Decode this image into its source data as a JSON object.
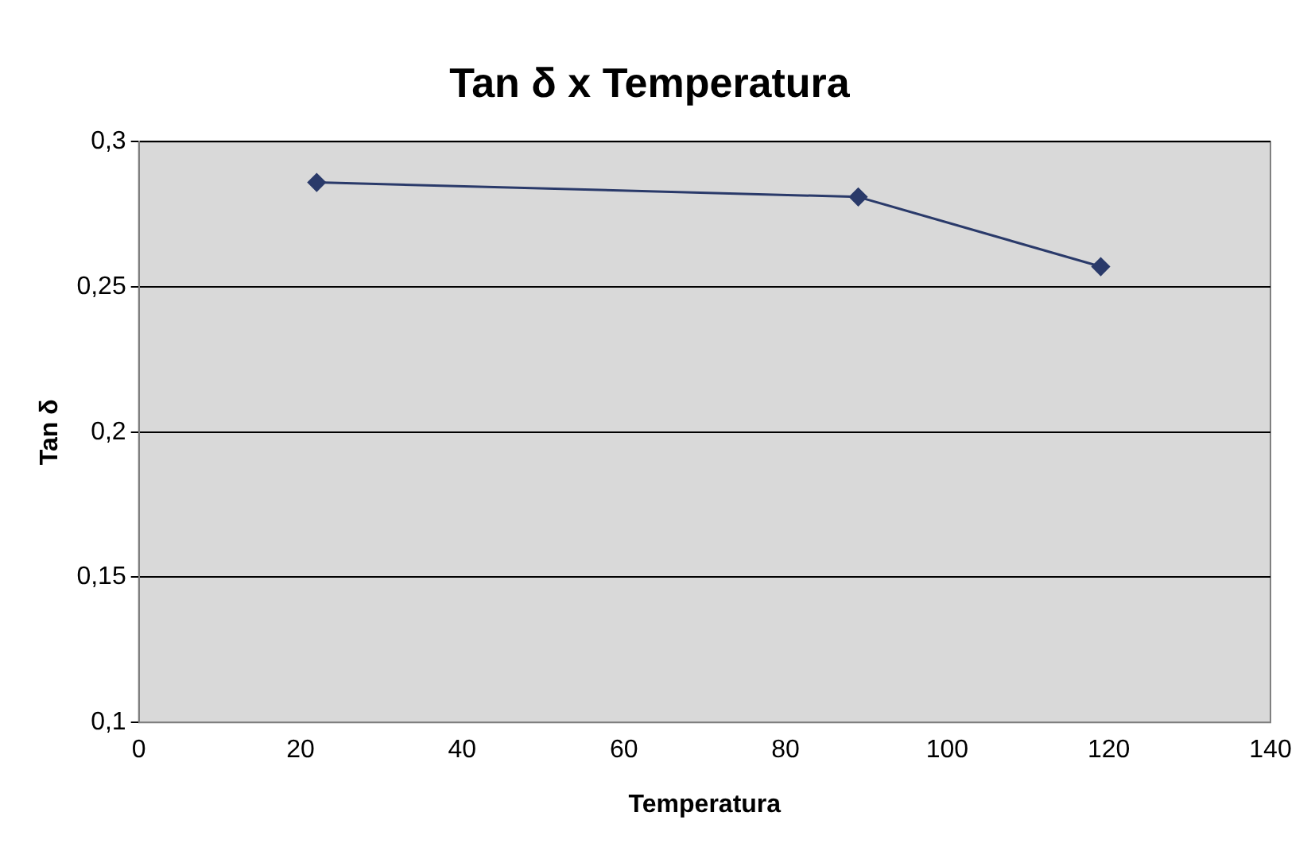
{
  "chart_data": {
    "type": "line",
    "title": "Tan δ x Temperatura",
    "xlabel": "Temperatura",
    "ylabel": "Tan δ",
    "x": [
      22,
      89,
      119
    ],
    "series": [
      {
        "color": "#2a3a6a",
        "values": [
          0.286,
          0.281,
          0.257
        ]
      }
    ],
    "xlim": [
      0,
      140
    ],
    "xticks": [
      0,
      20,
      40,
      60,
      80,
      100,
      120,
      140
    ],
    "ylim": [
      0.1,
      0.3
    ],
    "yticks": [
      {
        "value": 0.1,
        "label": "0,1"
      },
      {
        "value": 0.15,
        "label": "0,15"
      },
      {
        "value": 0.2,
        "label": "0,2"
      },
      {
        "value": 0.25,
        "label": "0,25"
      },
      {
        "value": 0.3,
        "label": "0,3"
      }
    ],
    "grid": "y",
    "legend": false,
    "marker": "diamond",
    "line_style": "solid"
  }
}
